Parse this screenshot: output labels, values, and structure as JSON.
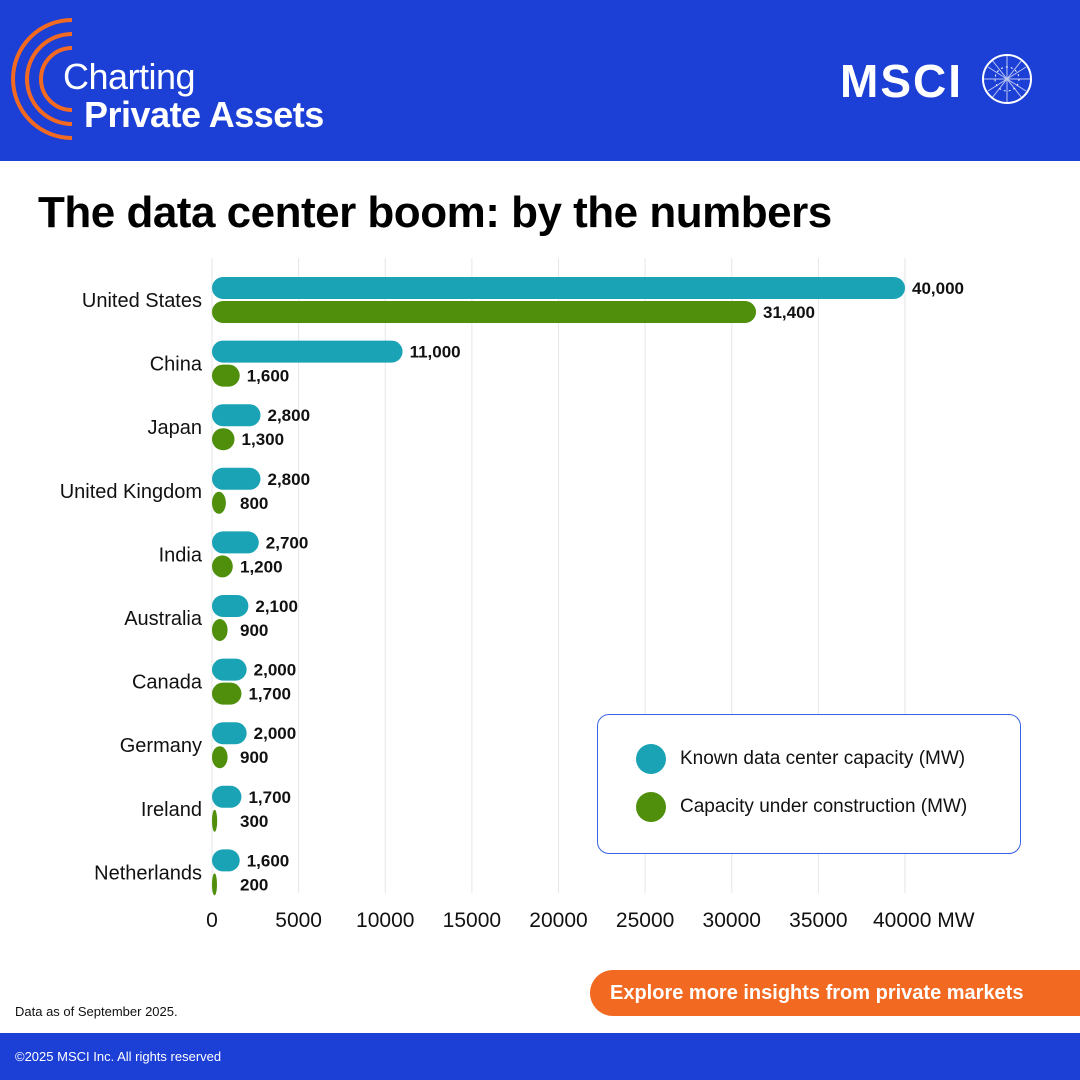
{
  "brand": {
    "line1": "Charting",
    "line2": "Private Assets",
    "company": "MSCI",
    "colors": {
      "header": "#1c3fd6",
      "accent": "#f26a21",
      "teal": "#1aa3b5",
      "green": "#4f8f0b"
    }
  },
  "title": "The data center boom: by the numbers",
  "chart_data": {
    "type": "bar",
    "orientation": "horizontal",
    "title": "The data center boom: by the numbers",
    "categories": [
      "United States",
      "China",
      "Japan",
      "United Kingdom",
      "India",
      "Australia",
      "Canada",
      "Germany",
      "Ireland",
      "Netherlands"
    ],
    "series": [
      {
        "name": "Known data center capacity (MW)",
        "color": "#1aa3b5",
        "values": [
          40000,
          11000,
          2800,
          2800,
          2700,
          2100,
          2000,
          2000,
          1700,
          1600
        ],
        "labels": [
          "40,000",
          "11,000",
          "2,800",
          "2,800",
          "2,700",
          "2,100",
          "2,000",
          "2,000",
          "1,700",
          "1,600"
        ]
      },
      {
        "name": "Capacity under construction (MW)",
        "color": "#4f8f0b",
        "values": [
          31400,
          1600,
          1300,
          800,
          1200,
          900,
          1700,
          900,
          300,
          200
        ],
        "labels": [
          "31,400",
          "1,600",
          "1,300",
          "800",
          "1,200",
          "900",
          "1,700",
          "900",
          "300",
          "200"
        ]
      }
    ],
    "x_ticks": [
      "0",
      "5000",
      "10000",
      "15000",
      "20000",
      "25000",
      "30000",
      "35000",
      "40000 MW"
    ],
    "xlim": [
      0,
      40000
    ],
    "grid": true,
    "legend_position": "bottom-right"
  },
  "footnote": "Data as of September 2025.",
  "cta_label": "Explore more insights from private markets",
  "copyright": "©2025 MSCI Inc. All rights reserved"
}
